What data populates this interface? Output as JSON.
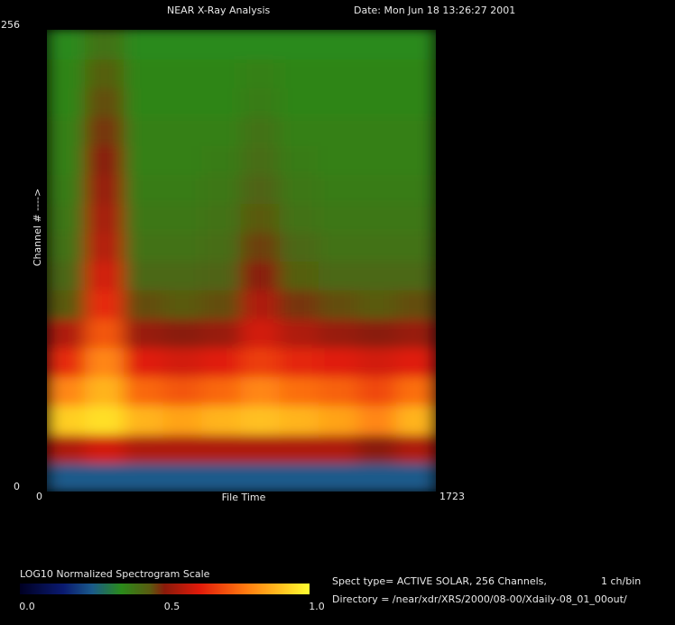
{
  "chart_data": {
    "type": "heatmap",
    "title": "NEAR X-Ray Analysis",
    "subtitle": "Date: Mon Jun 18 13:26:27 2001",
    "x_label": "File Time",
    "y_label": "Channel # ---->",
    "xlim": [
      0,
      1723
    ],
    "ylim": [
      0,
      256
    ],
    "xticks": [
      0,
      1723
    ],
    "yticks": [
      0,
      256
    ],
    "z": [
      [
        0.25,
        0.25,
        0.25,
        0.25,
        0.25,
        0.25,
        0.25,
        0.25,
        0.25,
        0.25
      ],
      [
        0.55,
        0.6,
        0.55,
        0.55,
        0.55,
        0.55,
        0.55,
        0.55,
        0.5,
        0.55
      ],
      [
        0.92,
        0.95,
        0.88,
        0.85,
        0.88,
        0.9,
        0.88,
        0.85,
        0.8,
        0.88
      ],
      [
        0.8,
        0.88,
        0.75,
        0.72,
        0.75,
        0.8,
        0.76,
        0.74,
        0.7,
        0.76
      ],
      [
        0.65,
        0.8,
        0.62,
        0.6,
        0.62,
        0.68,
        0.64,
        0.62,
        0.6,
        0.62
      ],
      [
        0.55,
        0.72,
        0.52,
        0.5,
        0.52,
        0.6,
        0.55,
        0.52,
        0.5,
        0.52
      ],
      [
        0.45,
        0.65,
        0.46,
        0.45,
        0.46,
        0.55,
        0.48,
        0.46,
        0.45,
        0.46
      ],
      [
        0.42,
        0.6,
        0.42,
        0.42,
        0.43,
        0.5,
        0.44,
        0.42,
        0.42,
        0.42
      ],
      [
        0.4,
        0.56,
        0.4,
        0.4,
        0.41,
        0.47,
        0.42,
        0.4,
        0.4,
        0.4
      ],
      [
        0.39,
        0.54,
        0.39,
        0.39,
        0.4,
        0.45,
        0.4,
        0.39,
        0.39,
        0.39
      ],
      [
        0.38,
        0.52,
        0.38,
        0.38,
        0.39,
        0.43,
        0.39,
        0.38,
        0.38,
        0.38
      ],
      [
        0.37,
        0.5,
        0.37,
        0.37,
        0.38,
        0.41,
        0.38,
        0.37,
        0.37,
        0.37
      ],
      [
        0.37,
        0.48,
        0.37,
        0.37,
        0.37,
        0.4,
        0.37,
        0.37,
        0.37,
        0.37
      ],
      [
        0.36,
        0.46,
        0.36,
        0.36,
        0.36,
        0.38,
        0.36,
        0.36,
        0.36,
        0.36
      ],
      [
        0.36,
        0.44,
        0.36,
        0.36,
        0.36,
        0.37,
        0.36,
        0.36,
        0.36,
        0.36
      ],
      [
        0.35,
        0.4,
        0.35,
        0.35,
        0.35,
        0.35,
        0.35,
        0.35,
        0.35,
        0.35
      ]
    ],
    "colorbar_title": "LOG10 Normalized Spectrogram Scale",
    "colorscale": [
      [
        0,
        "#000022"
      ],
      [
        0.15,
        "#0a1a70"
      ],
      [
        0.25,
        "#1a5a8a"
      ],
      [
        0.35,
        "#2a8a1a"
      ],
      [
        0.45,
        "#5a5a10"
      ],
      [
        0.5,
        "#8a1a0a"
      ],
      [
        0.62,
        "#e01a0a"
      ],
      [
        0.78,
        "#ff7a10"
      ],
      [
        0.9,
        "#ffc020"
      ],
      [
        1,
        "#ffff30"
      ]
    ],
    "colorbar_ticks": [
      {
        "value": 0,
        "label": "0.0"
      },
      {
        "value": 0.5,
        "label": "0.5"
      },
      {
        "value": 1,
        "label": "1.0"
      }
    ],
    "info_spect": "Spect type= ACTIVE SOLAR,  256 Channels,",
    "info_bin": "1 ch/bin",
    "info_dir": "Directory = /near/xdr/XRS/2000/08-00/Xdaily-08_01_00out/"
  }
}
